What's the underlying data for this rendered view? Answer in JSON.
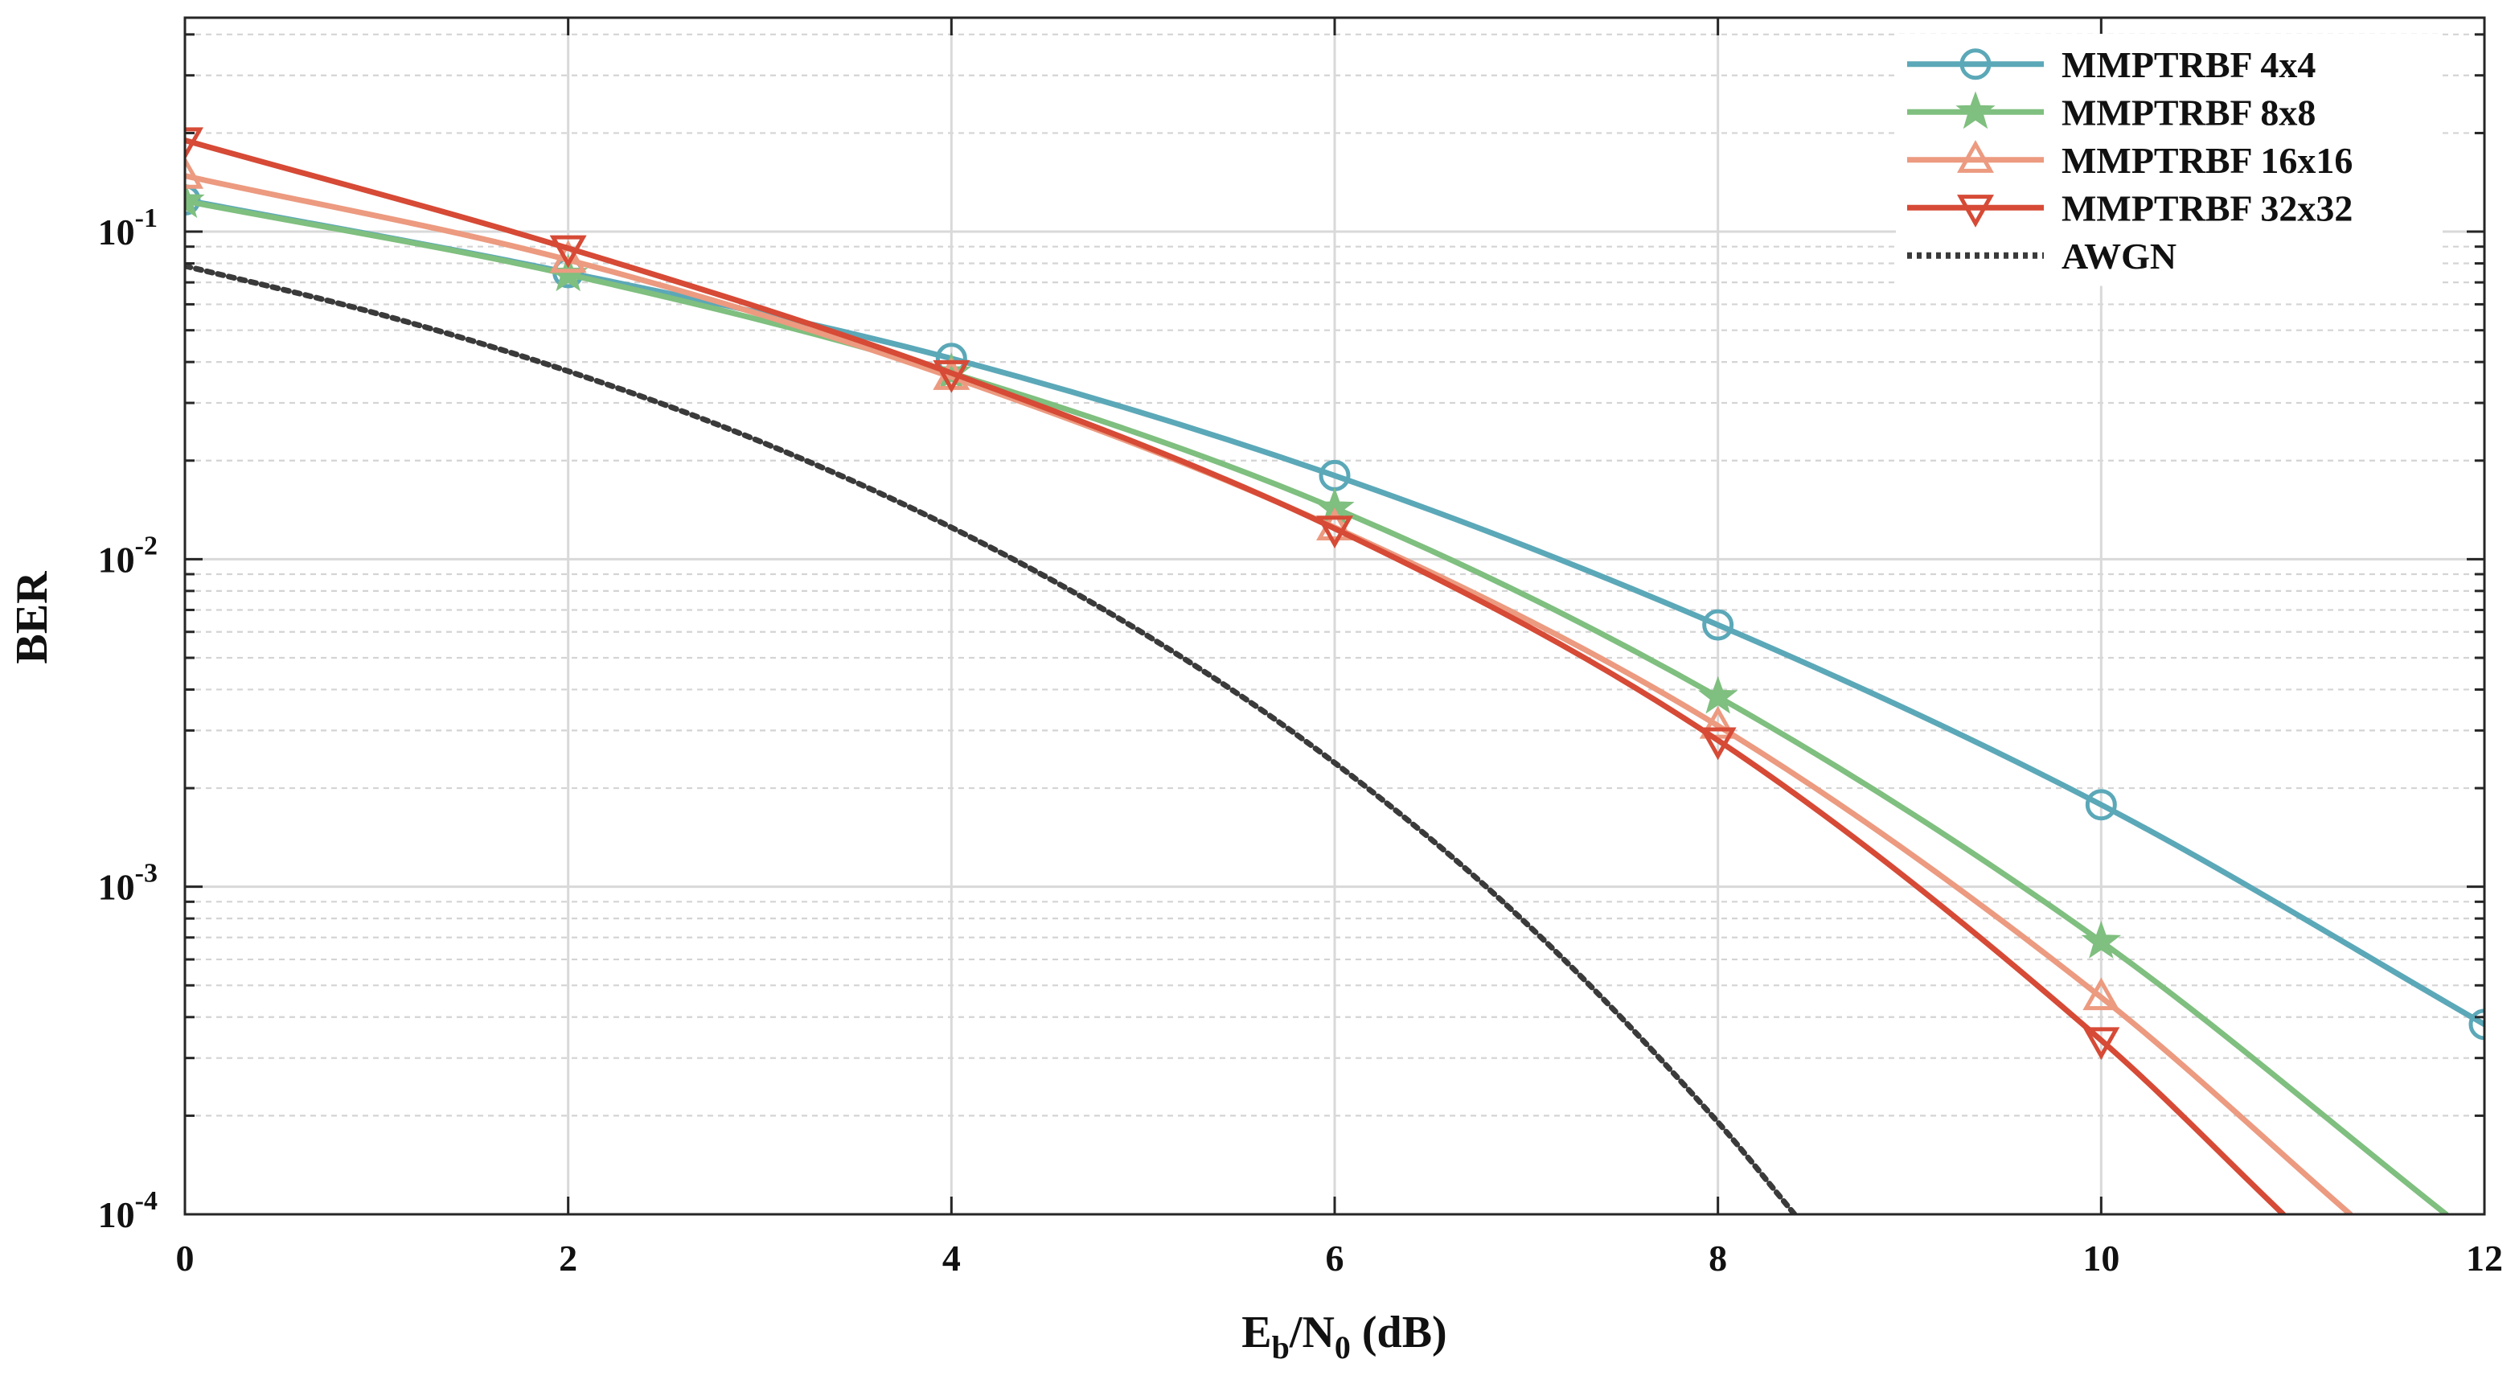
{
  "chart_data": {
    "type": "line",
    "title": "",
    "xlabel": {
      "main": "E",
      "sub1": "b",
      "mid": "/N",
      "sub2": "0",
      "tail": " (dB)"
    },
    "ylabel": "BER",
    "yscale": "log",
    "xlim": [
      0,
      12
    ],
    "ylim": [
      0.0001,
      0.45
    ],
    "grid": true,
    "legend_position": "top-right",
    "x_ticks": [
      0,
      2,
      4,
      6,
      8,
      10,
      12
    ],
    "x_tick_labels": [
      "0",
      "2",
      "4",
      "6",
      "8",
      "10",
      "12"
    ],
    "y_ticks": [
      {
        "value": 0.1,
        "base": "10",
        "exp": "-1"
      },
      {
        "value": 0.01,
        "base": "10",
        "exp": "-2"
      },
      {
        "value": 0.001,
        "base": "10",
        "exp": "-3"
      },
      {
        "value": 0.0001,
        "base": "10",
        "exp": "-4"
      }
    ],
    "series": [
      {
        "name": "MMPTRBF 4x4",
        "color": "#5ba8b8",
        "marker": "circle",
        "dash": "solid",
        "x": [
          0,
          2,
          4,
          6,
          8,
          10,
          12
        ],
        "y": [
          0.125,
          0.075,
          0.041,
          0.018,
          0.0063,
          0.00178,
          0.00038
        ]
      },
      {
        "name": "MMPTRBF 8x8",
        "color": "#7fbf7f",
        "marker": "star",
        "dash": "solid",
        "x": [
          0,
          2,
          4,
          6,
          8,
          10,
          11.8
        ],
        "y": [
          0.124,
          0.074,
          0.037,
          0.0143,
          0.0038,
          0.00068,
          0.0001
        ]
      },
      {
        "name": "MMPTRBF 16x16",
        "color": "#ec9a80",
        "marker": "triangle-up",
        "dash": "solid",
        "x": [
          0,
          2,
          4,
          6,
          8,
          10,
          11.3
        ],
        "y": [
          0.148,
          0.082,
          0.036,
          0.0125,
          0.0031,
          0.00046,
          0.0001
        ]
      },
      {
        "name": "MMPTRBF 32x32",
        "color": "#d64a36",
        "marker": "triangle-down",
        "dash": "solid",
        "x": [
          0,
          2,
          4,
          6,
          8,
          10,
          10.95
        ],
        "y": [
          0.19,
          0.089,
          0.037,
          0.0124,
          0.0028,
          0.00034,
          0.0001
        ]
      },
      {
        "name": "AWGN",
        "color": "#3a3a3a",
        "marker": "none",
        "dash": "dotted",
        "x": [
          0,
          1,
          2,
          3,
          4,
          5,
          6,
          7,
          8,
          8.4
        ],
        "y": [
          0.0786,
          0.0563,
          0.0375,
          0.0229,
          0.0125,
          0.00595,
          0.00239,
          0.000773,
          0.000191,
          0.0001
        ]
      }
    ]
  }
}
